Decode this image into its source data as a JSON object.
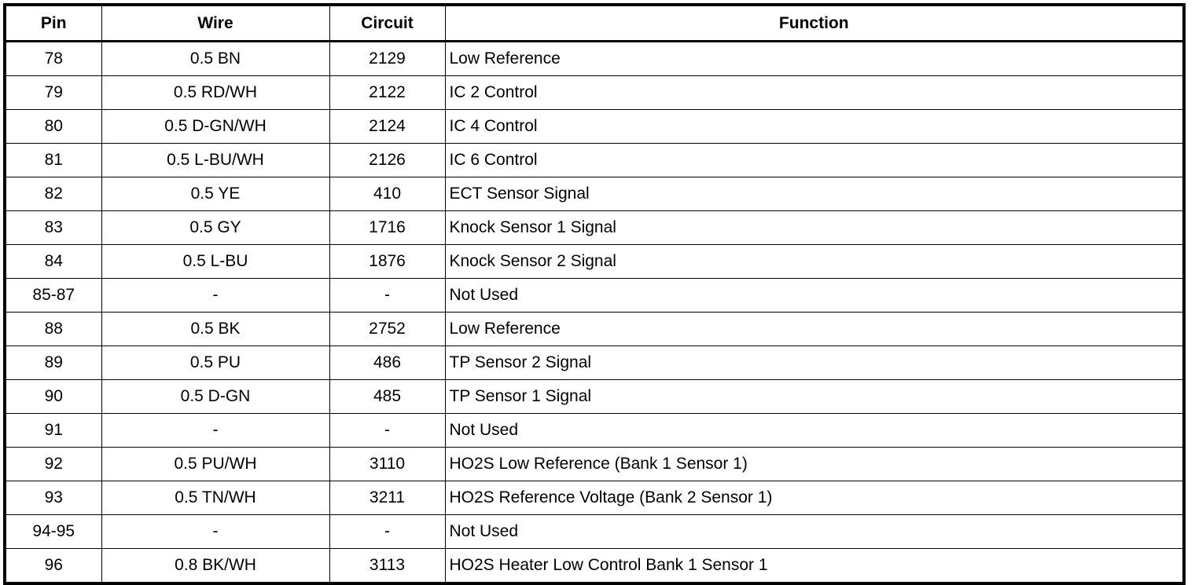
{
  "headers": {
    "pin": "Pin",
    "wire": "Wire",
    "circuit": "Circuit",
    "function": "Function"
  },
  "rows": [
    {
      "pin": "78",
      "wire": "0.5 BN",
      "circuit": "2129",
      "function": "Low Reference"
    },
    {
      "pin": "79",
      "wire": "0.5 RD/WH",
      "circuit": "2122",
      "function": "IC 2 Control"
    },
    {
      "pin": "80",
      "wire": "0.5 D-GN/WH",
      "circuit": "2124",
      "function": "IC 4 Control"
    },
    {
      "pin": "81",
      "wire": "0.5 L-BU/WH",
      "circuit": "2126",
      "function": "IC 6 Control"
    },
    {
      "pin": "82",
      "wire": "0.5 YE",
      "circuit": "410",
      "function": "ECT Sensor Signal"
    },
    {
      "pin": "83",
      "wire": "0.5 GY",
      "circuit": "1716",
      "function": "Knock Sensor 1 Signal"
    },
    {
      "pin": "84",
      "wire": "0.5 L-BU",
      "circuit": "1876",
      "function": "Knock Sensor 2 Signal"
    },
    {
      "pin": "85-87",
      "wire": "-",
      "circuit": "-",
      "function": "Not Used"
    },
    {
      "pin": "88",
      "wire": "0.5 BK",
      "circuit": "2752",
      "function": "Low Reference"
    },
    {
      "pin": "89",
      "wire": "0.5 PU",
      "circuit": "486",
      "function": "TP Sensor 2 Signal"
    },
    {
      "pin": "90",
      "wire": "0.5 D-GN",
      "circuit": "485",
      "function": "TP Sensor 1 Signal"
    },
    {
      "pin": "91",
      "wire": "-",
      "circuit": "-",
      "function": "Not Used"
    },
    {
      "pin": "92",
      "wire": "0.5 PU/WH",
      "circuit": "3110",
      "function": "HO2S Low Reference (Bank 1 Sensor 1)"
    },
    {
      "pin": "93",
      "wire": "0.5 TN/WH",
      "circuit": "3211",
      "function": "HO2S Reference Voltage (Bank 2 Sensor 1)"
    },
    {
      "pin": "94-95",
      "wire": "-",
      "circuit": "-",
      "function": "Not Used"
    },
    {
      "pin": "96",
      "wire": "0.8 BK/WH",
      "circuit": "3113",
      "function": "HO2S Heater Low Control Bank 1 Sensor 1"
    }
  ]
}
